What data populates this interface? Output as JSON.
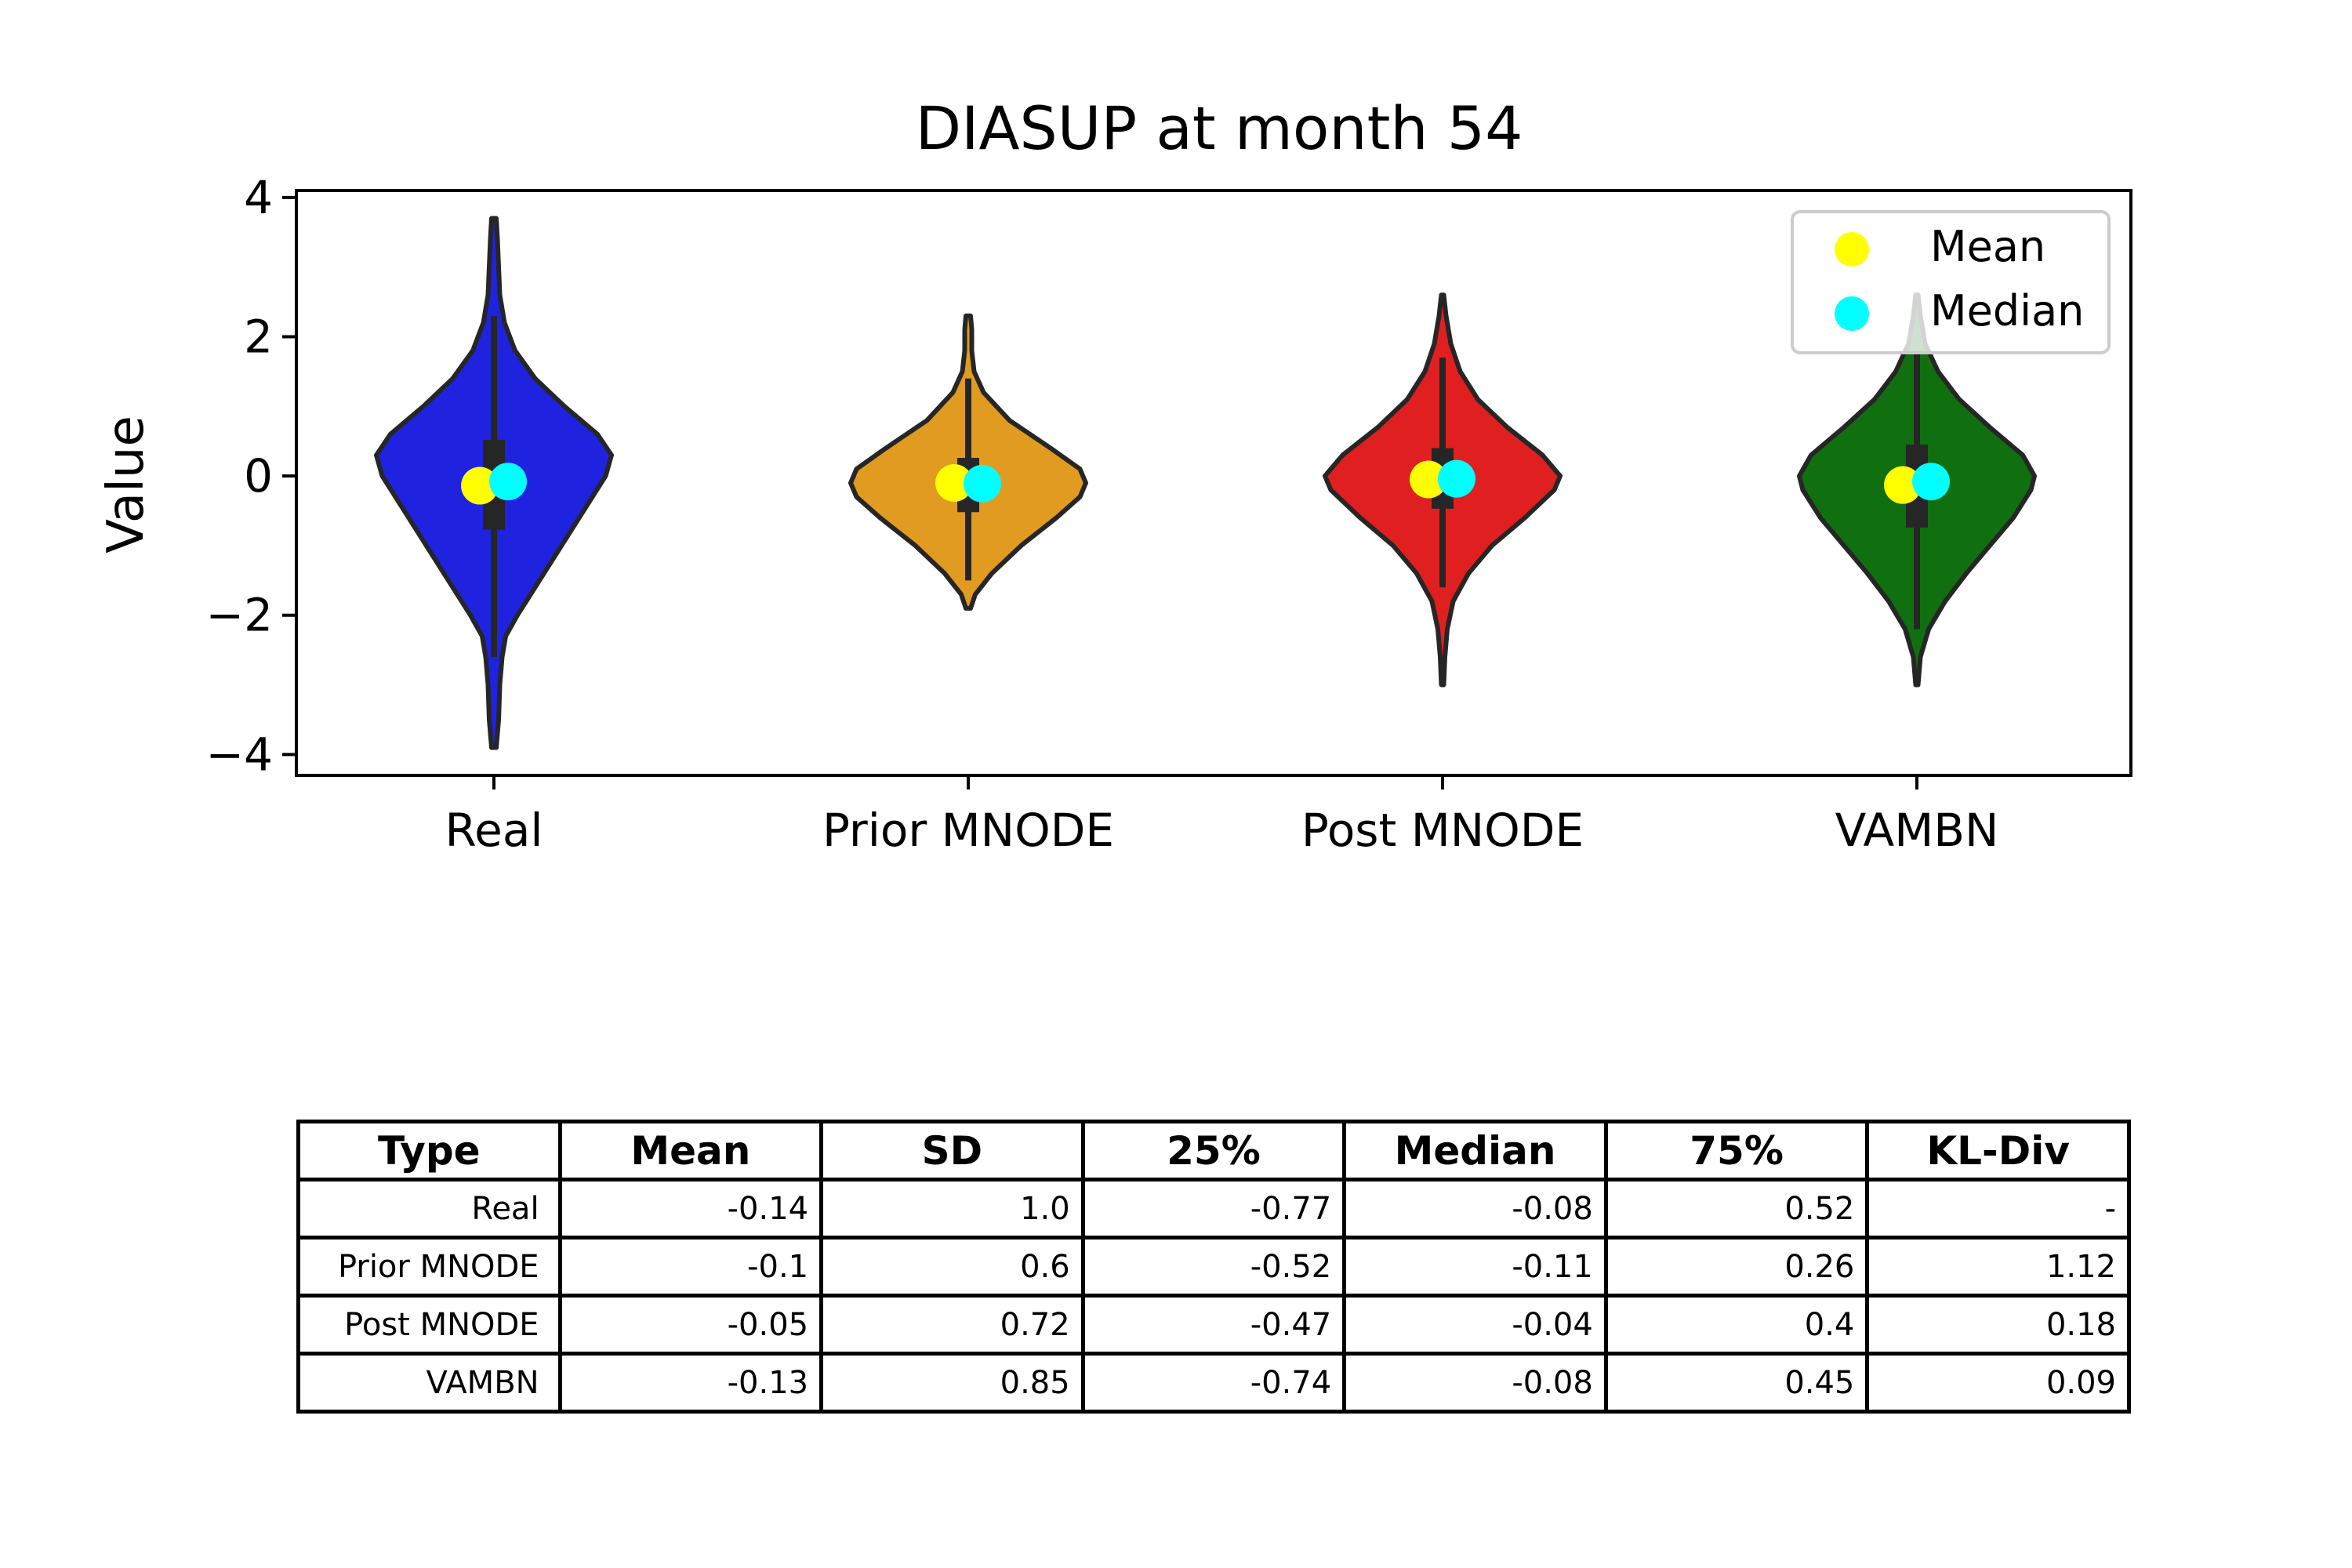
{
  "chart_data": {
    "type": "violin",
    "title": "DIASUP at month 54",
    "xlabel": "",
    "ylabel": "Value",
    "ylim": [
      -4.3,
      4.1
    ],
    "yticks": [
      4,
      2,
      0,
      -2,
      -4
    ],
    "ytick_labels": [
      "4",
      "2",
      "0",
      "−2",
      "−4"
    ],
    "legend": {
      "placement": "top-right",
      "entries": [
        {
          "label": "Mean",
          "color": "#ffff00"
        },
        {
          "label": "Median",
          "color": "#00ffff"
        }
      ]
    },
    "categories": [
      "Real",
      "Prior MNODE",
      "Post MNODE",
      "VAMBN"
    ],
    "series": [
      {
        "category": "Real",
        "color": "#1f23e0",
        "mean": -0.14,
        "median": -0.08,
        "q1": -0.77,
        "q3": 0.52,
        "whisker": [
          -2.6,
          2.3
        ],
        "extent": [
          -3.9,
          3.7
        ],
        "profile": [
          [
            -3.9,
            0.02
          ],
          [
            -3.5,
            0.04
          ],
          [
            -3.0,
            0.05
          ],
          [
            -2.6,
            0.07
          ],
          [
            -2.3,
            0.1
          ],
          [
            -2.0,
            0.2
          ],
          [
            -1.6,
            0.35
          ],
          [
            -1.2,
            0.5
          ],
          [
            -0.8,
            0.65
          ],
          [
            -0.4,
            0.8
          ],
          [
            0.0,
            0.95
          ],
          [
            0.3,
            1.0
          ],
          [
            0.6,
            0.88
          ],
          [
            1.0,
            0.6
          ],
          [
            1.4,
            0.35
          ],
          [
            1.8,
            0.18
          ],
          [
            2.2,
            0.09
          ],
          [
            2.6,
            0.05
          ],
          [
            3.0,
            0.04
          ],
          [
            3.4,
            0.03
          ],
          [
            3.7,
            0.02
          ]
        ]
      },
      {
        "category": "Prior MNODE",
        "color": "#e09b20",
        "mean": -0.1,
        "median": -0.11,
        "q1": -0.52,
        "q3": 0.26,
        "whisker": [
          -1.5,
          1.4
        ],
        "extent": [
          -1.9,
          2.3
        ],
        "profile": [
          [
            -1.9,
            0.02
          ],
          [
            -1.7,
            0.06
          ],
          [
            -1.4,
            0.2
          ],
          [
            -1.0,
            0.45
          ],
          [
            -0.6,
            0.75
          ],
          [
            -0.3,
            0.95
          ],
          [
            -0.1,
            1.0
          ],
          [
            0.1,
            0.95
          ],
          [
            0.4,
            0.7
          ],
          [
            0.8,
            0.35
          ],
          [
            1.2,
            0.13
          ],
          [
            1.5,
            0.05
          ],
          [
            1.8,
            0.03
          ],
          [
            2.1,
            0.03
          ],
          [
            2.3,
            0.02
          ]
        ]
      },
      {
        "category": "Post MNODE",
        "color": "#e02020",
        "mean": -0.05,
        "median": -0.04,
        "q1": -0.47,
        "q3": 0.4,
        "whisker": [
          -1.6,
          1.7
        ],
        "extent": [
          -3.0,
          2.6
        ],
        "profile": [
          [
            -3.0,
            0.01
          ],
          [
            -2.6,
            0.02
          ],
          [
            -2.2,
            0.04
          ],
          [
            -1.8,
            0.09
          ],
          [
            -1.4,
            0.22
          ],
          [
            -1.0,
            0.42
          ],
          [
            -0.6,
            0.7
          ],
          [
            -0.2,
            0.95
          ],
          [
            0.0,
            1.0
          ],
          [
            0.3,
            0.85
          ],
          [
            0.7,
            0.55
          ],
          [
            1.1,
            0.3
          ],
          [
            1.5,
            0.15
          ],
          [
            1.9,
            0.07
          ],
          [
            2.3,
            0.03
          ],
          [
            2.6,
            0.01
          ]
        ]
      },
      {
        "category": "VAMBN",
        "color": "#107010",
        "mean": -0.13,
        "median": -0.08,
        "q1": -0.74,
        "q3": 0.45,
        "whisker": [
          -2.2,
          1.8
        ],
        "extent": [
          -3.0,
          2.6
        ],
        "profile": [
          [
            -3.0,
            0.01
          ],
          [
            -2.6,
            0.03
          ],
          [
            -2.2,
            0.1
          ],
          [
            -1.8,
            0.24
          ],
          [
            -1.4,
            0.42
          ],
          [
            -1.0,
            0.62
          ],
          [
            -0.6,
            0.82
          ],
          [
            -0.2,
            0.97
          ],
          [
            0.0,
            1.0
          ],
          [
            0.3,
            0.9
          ],
          [
            0.7,
            0.62
          ],
          [
            1.1,
            0.36
          ],
          [
            1.5,
            0.18
          ],
          [
            1.9,
            0.07
          ],
          [
            2.3,
            0.03
          ],
          [
            2.6,
            0.01
          ]
        ]
      }
    ]
  },
  "table": {
    "headers": [
      "Type",
      "Mean",
      "SD",
      "25%",
      "Median",
      "75%",
      "KL-Div"
    ],
    "rows": [
      [
        "Real",
        "-0.14",
        "1.0",
        "-0.77",
        "-0.08",
        "0.52",
        "-"
      ],
      [
        "Prior MNODE",
        "-0.1",
        "0.6",
        "-0.52",
        "-0.11",
        "0.26",
        "1.12"
      ],
      [
        "Post MNODE",
        "-0.05",
        "0.72",
        "-0.47",
        "-0.04",
        "0.4",
        "0.18"
      ],
      [
        "VAMBN",
        "-0.13",
        "0.85",
        "-0.74",
        "-0.08",
        "0.45",
        "0.09"
      ]
    ]
  }
}
